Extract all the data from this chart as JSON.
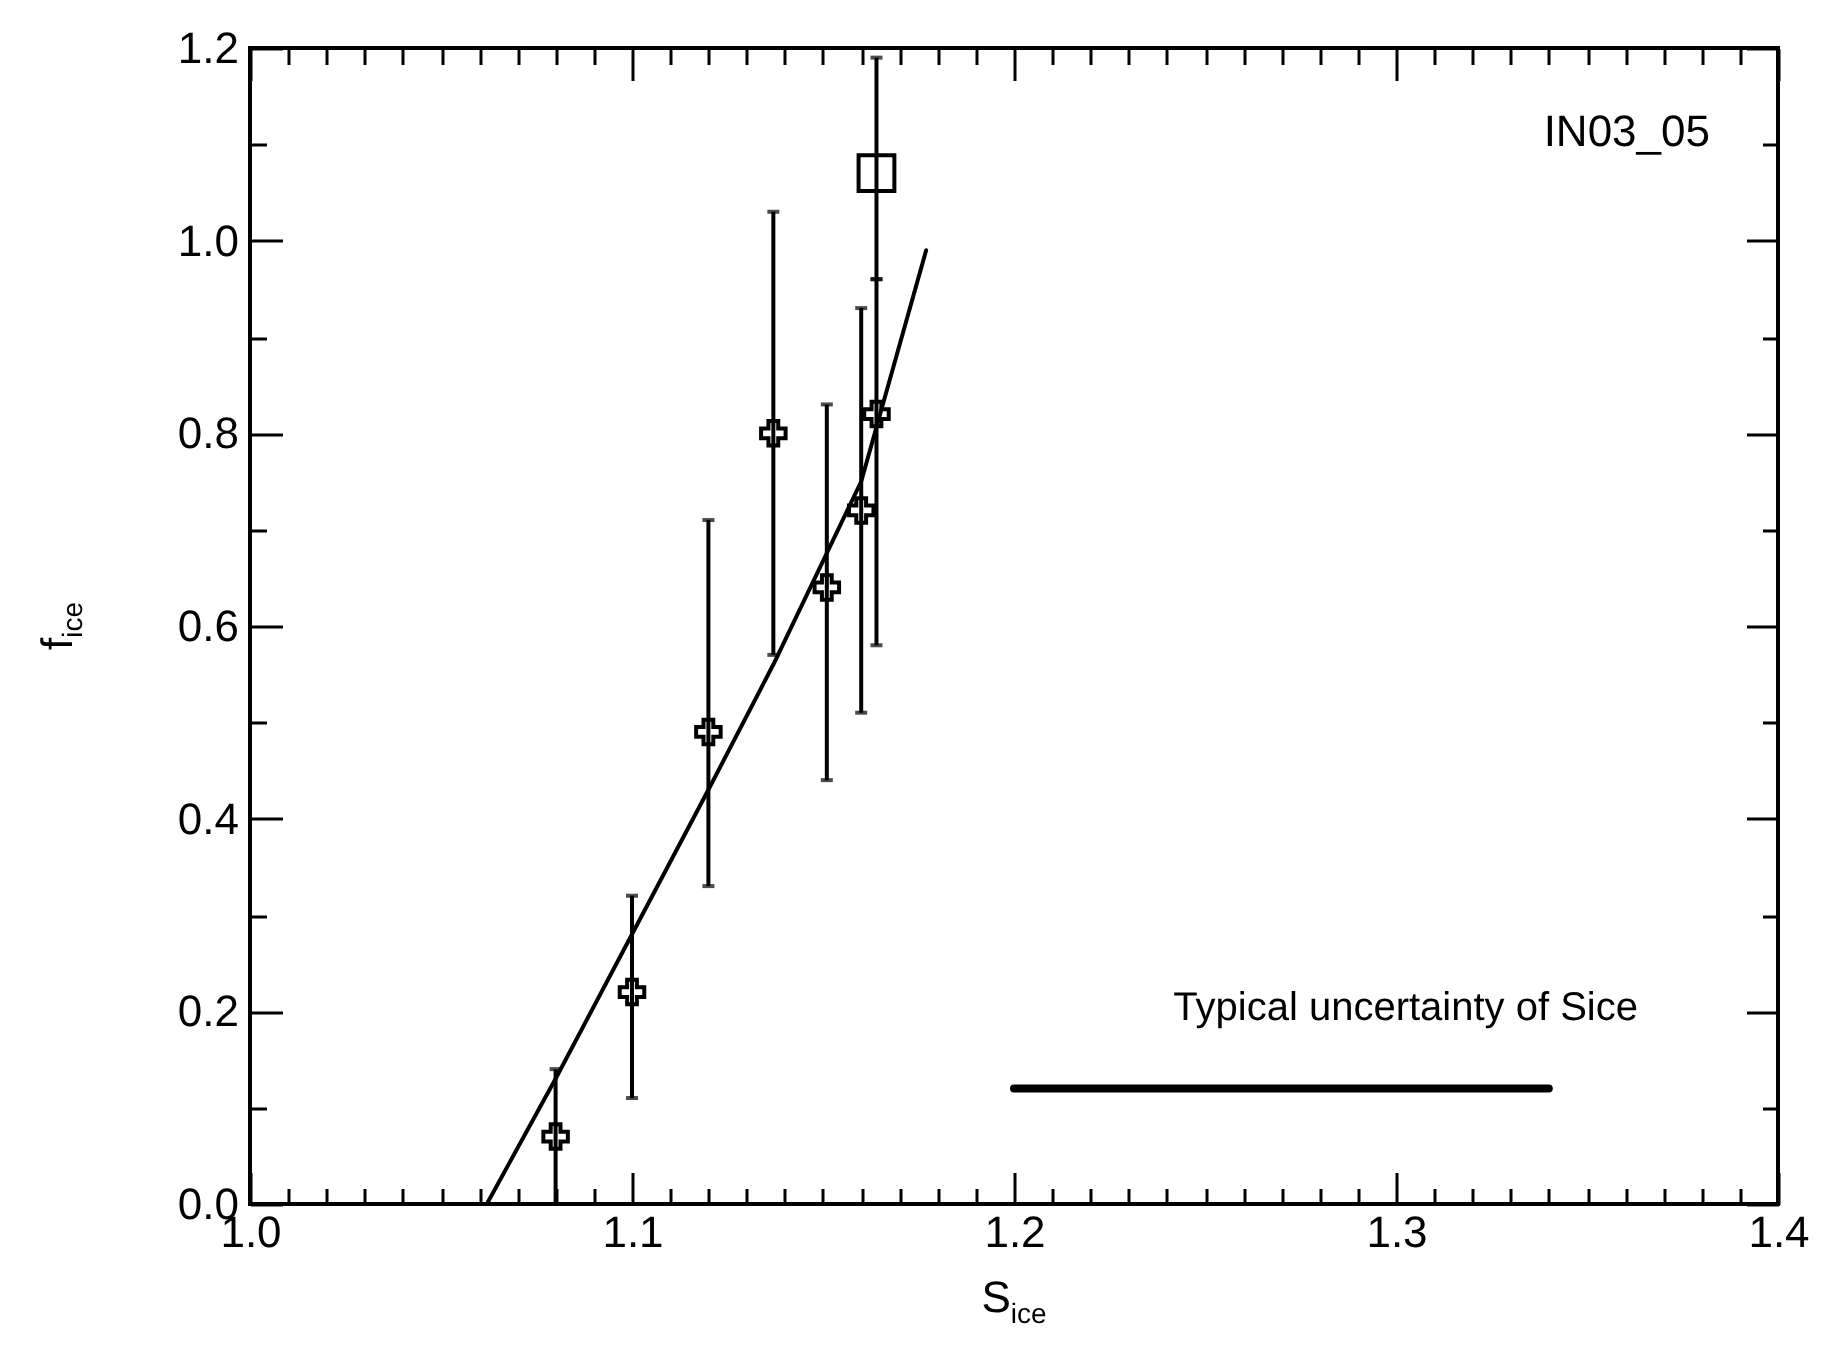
{
  "chart_data": {
    "type": "scatter",
    "xlabel": "S$_{ice}$",
    "ylabel": "f$_{ice}$",
    "xlim": [
      1.0,
      1.4
    ],
    "ylim": [
      0.0,
      1.2
    ],
    "xticks": [
      {
        "value": 1.0,
        "label": "1.0"
      },
      {
        "value": 1.01,
        "label": null
      },
      {
        "value": 1.02,
        "label": null
      },
      {
        "value": 1.03,
        "label": null
      },
      {
        "value": 1.04,
        "label": null
      },
      {
        "value": 1.05,
        "label": null
      },
      {
        "value": 1.06,
        "label": null
      },
      {
        "value": 1.07,
        "label": null
      },
      {
        "value": 1.08,
        "label": null
      },
      {
        "value": 1.09,
        "label": null
      },
      1.1,
      {
        "value": 1.11,
        "label": null
      },
      {
        "value": 1.12,
        "label": null
      },
      {
        "value": 1.13,
        "label": null
      },
      {
        "value": 1.14,
        "label": null
      },
      {
        "value": 1.15,
        "label": null
      },
      {
        "value": 1.16,
        "label": null
      },
      {
        "value": 1.17,
        "label": null
      },
      {
        "value": 1.18,
        "label": null
      },
      {
        "value": 1.19,
        "label": null
      },
      1.2,
      {
        "value": 1.21,
        "label": null
      },
      {
        "value": 1.22,
        "label": null
      },
      {
        "value": 1.23,
        "label": null
      },
      {
        "value": 1.24,
        "label": null
      },
      {
        "value": 1.25,
        "label": null
      },
      {
        "value": 1.26,
        "label": null
      },
      {
        "value": 1.27,
        "label": null
      },
      {
        "value": 1.28,
        "label": null
      },
      {
        "value": 1.29,
        "label": null
      },
      1.3,
      {
        "value": 1.31,
        "label": null
      },
      {
        "value": 1.32,
        "label": null
      },
      {
        "value": 1.33,
        "label": null
      },
      {
        "value": 1.34,
        "label": null
      },
      {
        "value": 1.35,
        "label": null
      },
      {
        "value": 1.36,
        "label": null
      },
      {
        "value": 1.37,
        "label": null
      },
      {
        "value": 1.38,
        "label": null
      },
      {
        "value": 1.39,
        "label": null
      },
      1.4
    ],
    "yticks": [
      {
        "value": 0.0,
        "label": "0.0"
      },
      {
        "value": 0.1,
        "label": null
      },
      0.2,
      {
        "value": 0.3,
        "label": null
      },
      0.4,
      {
        "value": 0.5,
        "label": null
      },
      0.6,
      {
        "value": 0.7,
        "label": null
      },
      0.8,
      {
        "value": 0.9,
        "label": null
      },
      {
        "value": 1.0,
        "label": "1.0"
      },
      {
        "value": 1.1,
        "label": null
      },
      1.2
    ],
    "series": [
      {
        "color": "#000000",
        "marker": "cross",
        "x": [
          1.08,
          1.1,
          1.12,
          1.137,
          1.151,
          1.16,
          1.164
        ],
        "values": [
          0.07,
          0.22,
          0.49,
          0.8,
          0.64,
          0.72,
          0.82
        ],
        "errors": [
          [
            0,
            0.14
          ],
          [
            0.11,
            0.32
          ],
          [
            0.33,
            0.71
          ],
          [
            0.57,
            1.03
          ],
          [
            0.44,
            0.83
          ],
          [
            0.51,
            0.93
          ],
          [
            0.58,
            0.96
          ]
        ]
      },
      {
        "color": "#000000",
        "marker": "square",
        "x": [
          1.164
        ],
        "values": [
          1.07
        ],
        "errors": [
          [
            0.96,
            1.19
          ]
        ]
      },
      {
        "type": "line",
        "color": "#000000",
        "x": [
          1.062,
          1.08,
          1.1,
          1.12,
          1.137,
          1.16,
          1.177
        ],
        "values": [
          0,
          0.13,
          0.28,
          0.43,
          0.56,
          0.75,
          0.99
        ]
      },
      {
        "type": "line",
        "color": "#000000",
        "x": [
          1.2,
          1.34
        ],
        "values": [
          0.12,
          0.12
        ]
      }
    ],
    "annotations": [
      "IN03_05",
      "Typical uncertainty of Sice"
    ]
  }
}
